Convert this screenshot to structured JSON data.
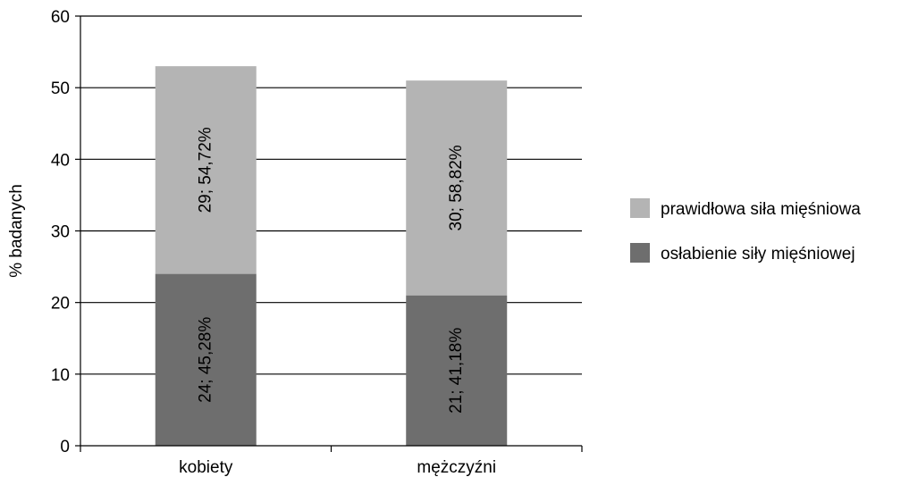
{
  "chart_data": {
    "type": "bar",
    "stacked": true,
    "categories": [
      "kobiety",
      "mężczyźni"
    ],
    "series": [
      {
        "name": "osłabienie siły mięśniowej",
        "values": [
          24,
          21
        ],
        "labels": [
          "24; 45,28%",
          "21; 41,18%"
        ],
        "color": "#6e6e6e"
      },
      {
        "name": "prawidłowa siła mięśniowa",
        "values": [
          29,
          30
        ],
        "labels": [
          "29; 54,72%",
          "30; 58,82%"
        ],
        "color": "#b4b4b4"
      }
    ],
    "title": "",
    "xlabel": "",
    "ylabel": "% badanych",
    "ylim": [
      0,
      60
    ],
    "yticks": [
      "0",
      "10",
      "20",
      "30",
      "40",
      "50",
      "60"
    ],
    "grid": true,
    "legend_position": "right",
    "legend_order": [
      "prawidłowa siła mięśniowa",
      "osłabienie siły mięśniowej"
    ]
  }
}
